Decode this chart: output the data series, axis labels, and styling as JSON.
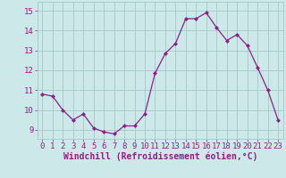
{
  "x": [
    0,
    1,
    2,
    3,
    4,
    5,
    6,
    7,
    8,
    9,
    10,
    11,
    12,
    13,
    14,
    15,
    16,
    17,
    18,
    19,
    20,
    21,
    22,
    23
  ],
  "y": [
    10.8,
    10.7,
    10.0,
    9.5,
    9.8,
    9.1,
    8.9,
    8.8,
    9.2,
    9.2,
    9.8,
    11.85,
    12.85,
    13.35,
    14.6,
    14.6,
    14.9,
    14.15,
    13.5,
    13.8,
    13.25,
    12.15,
    11.0,
    9.5
  ],
  "line_color": "#882288",
  "marker": "D",
  "marker_size": 2.0,
  "bg_color": "#cce8e8",
  "grid_color": "#aacccc",
  "xlabel": "Windchill (Refroidissement éolien,°C)",
  "xlabel_color": "#882288",
  "tick_color": "#882288",
  "ylabel_ticks": [
    9,
    10,
    11,
    12,
    13,
    14,
    15
  ],
  "xlim": [
    -0.5,
    23.5
  ],
  "ylim": [
    8.55,
    15.45
  ],
  "font_size_xlabel": 7.0,
  "font_size_tick": 6.5
}
